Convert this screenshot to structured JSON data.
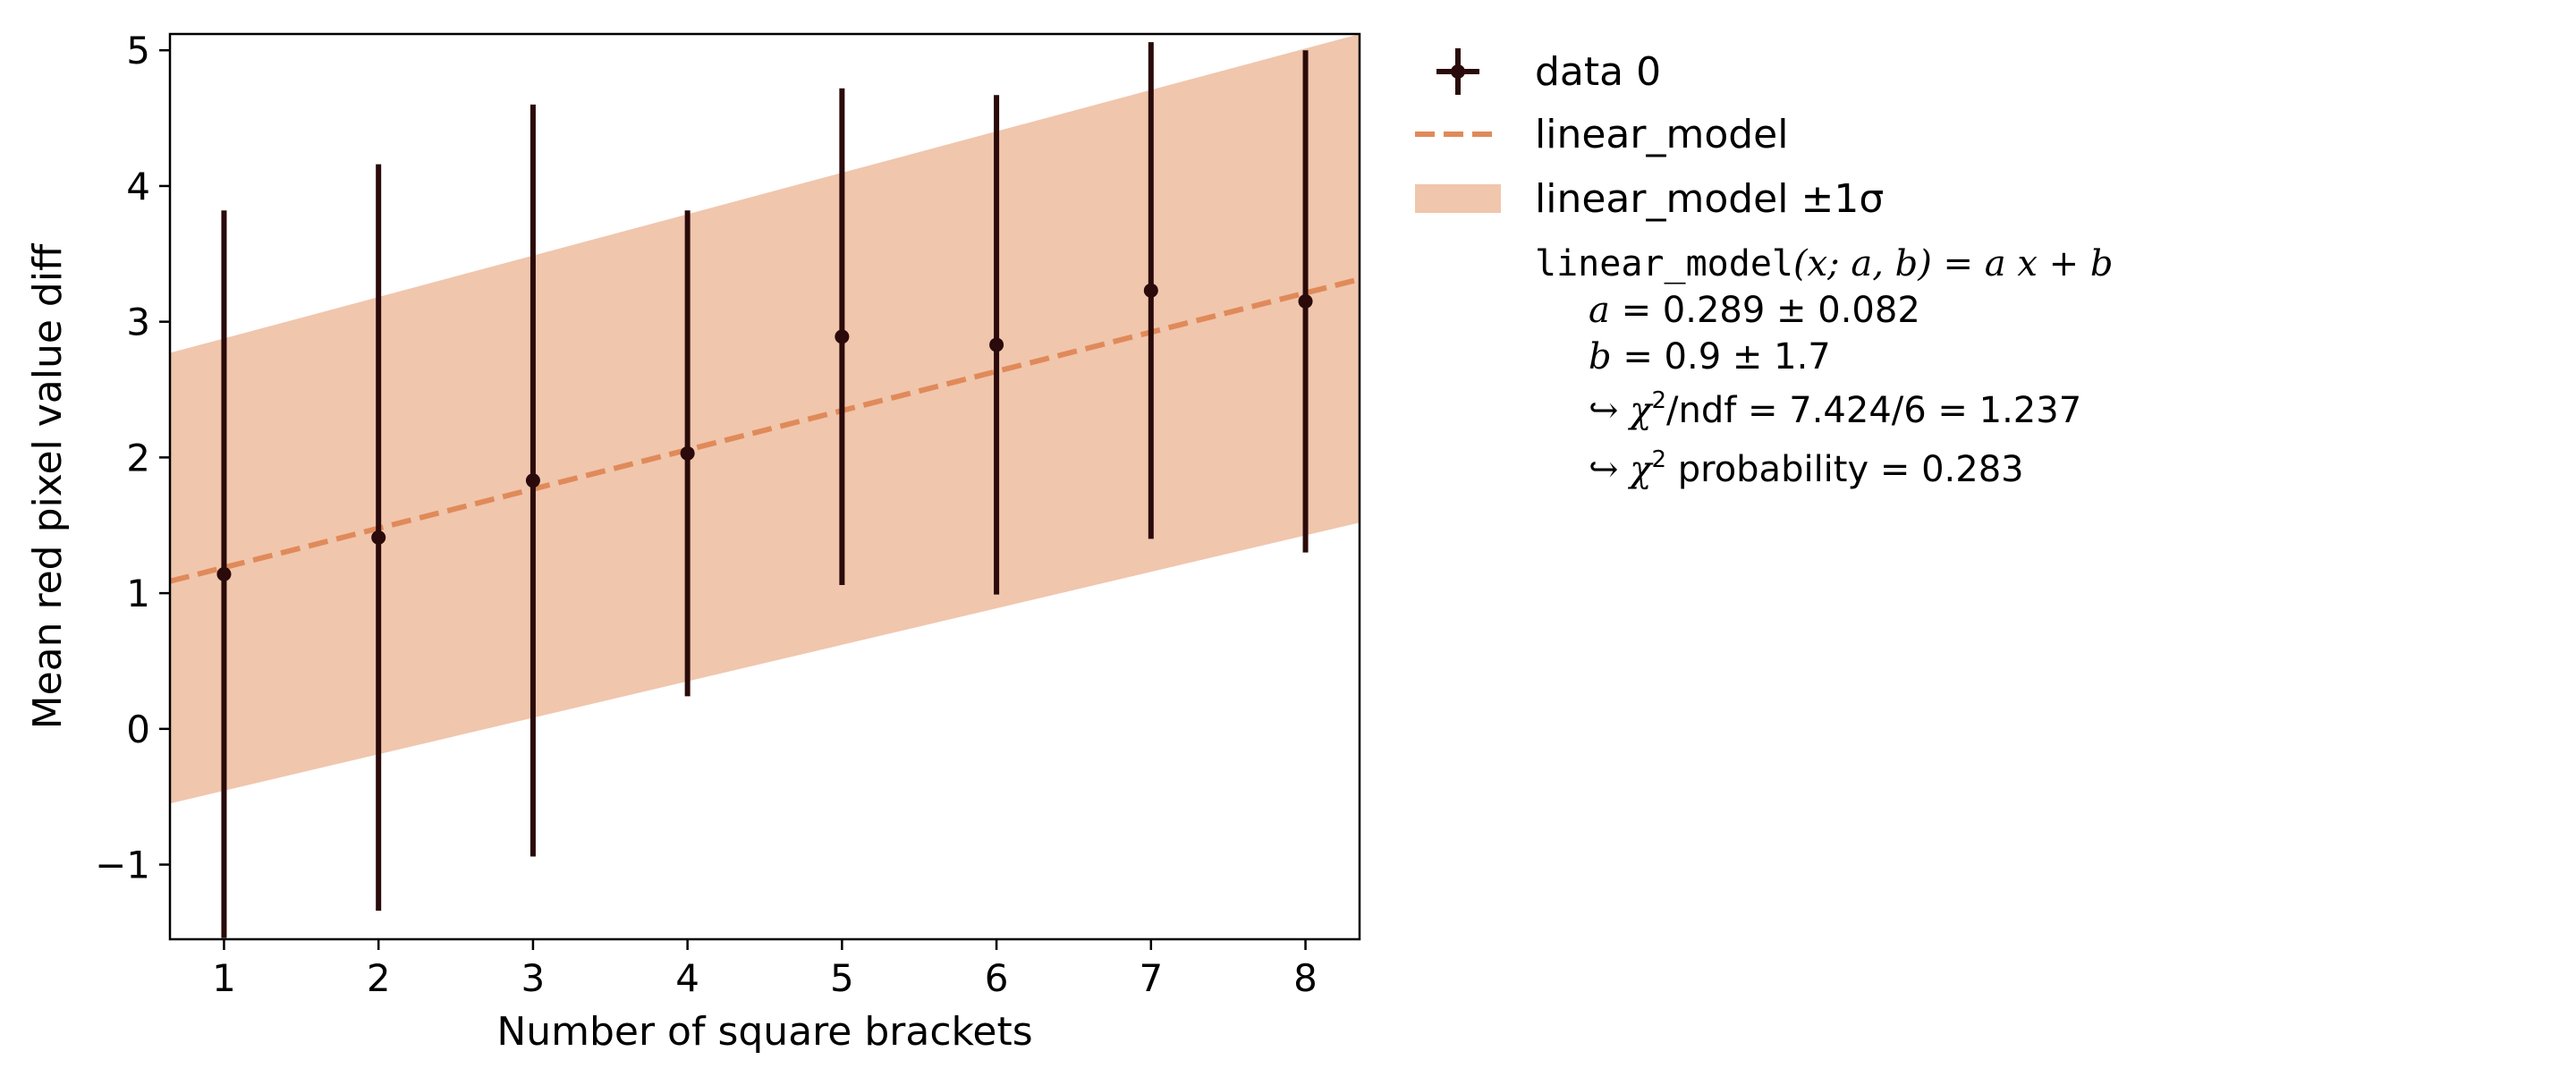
{
  "chart_data": {
    "type": "scatter",
    "xlabel": "Number of square brackets",
    "ylabel": "Mean red pixel value diff",
    "xlim": [
      0.65,
      8.35
    ],
    "ylim": [
      -1.55,
      5.12
    ],
    "x_ticks": [
      1,
      2,
      3,
      4,
      5,
      6,
      7,
      8
    ],
    "y_ticks": [
      -1,
      0,
      1,
      2,
      3,
      4,
      5
    ],
    "y_tick_labels": [
      "−1",
      "0",
      "1",
      "2",
      "3",
      "4",
      "5"
    ],
    "grid": false,
    "legend_placement": "outside-right",
    "series": [
      {
        "name": "data 0",
        "kind": "errorbar",
        "x": [
          1,
          2,
          3,
          4,
          5,
          6,
          7,
          8
        ],
        "y": [
          1.14,
          1.41,
          1.83,
          2.03,
          2.89,
          2.83,
          3.23,
          3.15
        ],
        "yerr": [
          2.68,
          2.75,
          2.77,
          1.79,
          1.83,
          1.84,
          1.83,
          1.85
        ],
        "color": "#2a0a0a"
      },
      {
        "name": "linear_model",
        "kind": "line",
        "slope": 0.289,
        "intercept": 0.9,
        "style": "dashed",
        "color": "#e08a5a"
      },
      {
        "name": "linear_model ±1σ",
        "kind": "band",
        "x": [
          0.65,
          8.35
        ],
        "lower": [
          -0.55,
          1.52
        ],
        "upper": [
          2.77,
          5.12
        ],
        "color": "#f0c6ad"
      }
    ],
    "legend": [
      {
        "label": "data 0",
        "marker": "errorbar"
      },
      {
        "label": "linear_model",
        "marker": "dashed-line"
      },
      {
        "label": "linear_model ±1σ",
        "marker": "band"
      }
    ],
    "fit_info": {
      "model_name": "linear_model",
      "model_args": "(x; a, b) = a x + b",
      "param_a_name": "a",
      "param_a_value": "= 0.289 ± 0.082",
      "param_b_name": "b",
      "param_b_value": "= 0.9 ± 1.7",
      "chi2_ndf_prefix": "↪ χ",
      "chi2_ndf_rest": "/ndf = 7.424/6 = 1.237",
      "chi2_prob_prefix": "↪ χ",
      "chi2_prob_rest": " probability = 0.283",
      "sup": "2"
    }
  }
}
